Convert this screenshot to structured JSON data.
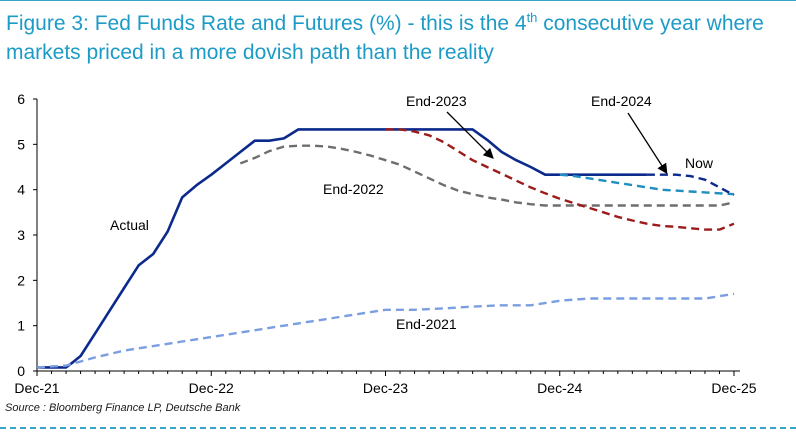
{
  "title_main": "Figure 3: Fed Funds Rate and Futures (%) - this is the 4",
  "title_sup": "th",
  "title_rest": " consecutive year where markets priced in a more dovish path than the reality",
  "source": "Source : Bloomberg Finance LP, Deutsche Bank",
  "colors": {
    "title": "#1d9bc7",
    "actual": "#0b2a8c",
    "end2021": "#7a9ee0",
    "end2022": "#6e6e6e",
    "end2023": "#9c1c1c",
    "end2024": "#1e8fc0",
    "now": "#0b2a8c"
  },
  "chart_data": {
    "type": "line",
    "title": "Figure 3: Fed Funds Rate and Futures (%) - this is the 4th consecutive year where markets priced in a more dovish path than the reality",
    "xlabel": "",
    "ylabel": "",
    "x_ticks": [
      "Dec-21",
      "Dec-22",
      "Dec-23",
      "Dec-24",
      "Dec-25"
    ],
    "x_tick_values": [
      0,
      12,
      24,
      36,
      48
    ],
    "xlim": [
      0,
      48
    ],
    "y_ticks": [
      "0",
      "1",
      "2",
      "3",
      "4",
      "5",
      "6"
    ],
    "y_tick_values": [
      0,
      1,
      2,
      3,
      4,
      5,
      6
    ],
    "ylim": [
      0,
      6
    ],
    "grid": false,
    "series": [
      {
        "name": "Actual",
        "style": "solid",
        "x": [
          0,
          2,
          2.5,
          3,
          4,
          5,
          6,
          7,
          8,
          9,
          10,
          11,
          12,
          13,
          14,
          15,
          16,
          17,
          18,
          19,
          20,
          21,
          22,
          23,
          24,
          25,
          26,
          27,
          28,
          29,
          30,
          31,
          32,
          33,
          34,
          35,
          36,
          37,
          38,
          39,
          40,
          41,
          42
        ],
        "y": [
          0.08,
          0.08,
          0.2,
          0.33,
          0.83,
          1.33,
          1.83,
          2.33,
          2.58,
          3.08,
          3.83,
          4.1,
          4.33,
          4.58,
          4.83,
          5.08,
          5.08,
          5.13,
          5.33,
          5.33,
          5.33,
          5.33,
          5.33,
          5.33,
          5.33,
          5.33,
          5.33,
          5.33,
          5.33,
          5.33,
          5.33,
          5.1,
          4.83,
          4.65,
          4.5,
          4.33,
          4.33,
          4.33,
          4.33,
          4.33,
          4.33,
          4.33,
          4.33
        ]
      },
      {
        "name": "End-2021",
        "style": "dashed",
        "x": [
          0,
          2,
          4,
          6,
          8,
          10,
          12,
          14,
          16,
          18,
          20,
          22,
          24,
          26,
          28,
          30,
          32,
          34,
          36,
          38,
          40,
          42,
          44,
          46,
          48
        ],
        "y": [
          0.08,
          0.12,
          0.3,
          0.45,
          0.55,
          0.65,
          0.75,
          0.85,
          0.95,
          1.05,
          1.15,
          1.25,
          1.35,
          1.35,
          1.38,
          1.42,
          1.45,
          1.45,
          1.55,
          1.6,
          1.6,
          1.6,
          1.6,
          1.6,
          1.7
        ]
      },
      {
        "name": "End-2022",
        "style": "dashed",
        "x": [
          14,
          15,
          16,
          17,
          18,
          19,
          20,
          21,
          22,
          23,
          24,
          25,
          26,
          27,
          28,
          29,
          30,
          31,
          32,
          33,
          34,
          35,
          36,
          37,
          38,
          40,
          42,
          44,
          46,
          47,
          48
        ],
        "y": [
          4.58,
          4.7,
          4.85,
          4.95,
          4.97,
          4.97,
          4.95,
          4.9,
          4.83,
          4.75,
          4.65,
          4.55,
          4.4,
          4.25,
          4.1,
          3.98,
          3.9,
          3.83,
          3.78,
          3.72,
          3.68,
          3.65,
          3.65,
          3.65,
          3.65,
          3.65,
          3.65,
          3.65,
          3.65,
          3.65,
          3.72
        ]
      },
      {
        "name": "End-2023",
        "style": "dashed",
        "x": [
          24,
          25,
          26,
          27,
          28,
          29,
          30,
          31,
          32,
          33,
          34,
          35,
          36,
          37,
          38,
          39,
          40,
          41,
          42,
          43,
          44,
          45,
          46,
          47,
          48
        ],
        "y": [
          5.33,
          5.33,
          5.28,
          5.2,
          5.05,
          4.85,
          4.65,
          4.5,
          4.35,
          4.2,
          4.05,
          3.92,
          3.8,
          3.7,
          3.6,
          3.5,
          3.4,
          3.32,
          3.25,
          3.2,
          3.18,
          3.15,
          3.12,
          3.12,
          3.25
        ]
      },
      {
        "name": "End-2024",
        "style": "dashed",
        "x": [
          36,
          37,
          38,
          39,
          40,
          41,
          42,
          43,
          44,
          45,
          46,
          47,
          48
        ],
        "y": [
          4.33,
          4.3,
          4.25,
          4.2,
          4.15,
          4.1,
          4.05,
          4.0,
          3.98,
          3.96,
          3.94,
          3.92,
          3.9
        ]
      },
      {
        "name": "Now",
        "style": "dashed",
        "x": [
          42,
          43,
          44,
          45,
          46,
          47,
          48
        ],
        "y": [
          4.33,
          4.33,
          4.33,
          4.3,
          4.22,
          4.05,
          3.88
        ]
      }
    ],
    "annotations": [
      "Actual",
      "End-2021",
      "End-2022",
      "End-2023",
      "End-2024",
      "Now"
    ]
  }
}
